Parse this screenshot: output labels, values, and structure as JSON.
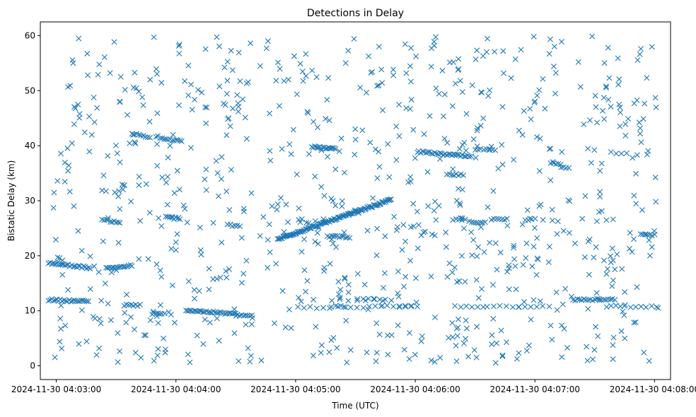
{
  "chart_data": {
    "type": "scatter",
    "title": "Detections in Delay",
    "xlabel": "Time (UTC)",
    "ylabel": "Bistatic Delay (km)",
    "marker": "x",
    "color": "#1f77b4",
    "grid": false,
    "xlim": [
      "2024-11-30 04:02:52",
      "2024-11-30 04:08:08"
    ],
    "ylim": [
      -2.5,
      62.5
    ],
    "x_ticks": [
      "2024-11-30 04:03:00",
      "2024-11-30 04:04:00",
      "2024-11-30 04:05:00",
      "2024-11-30 04:06:00",
      "2024-11-30 04:07:00",
      "2024-11-30 04:08:00"
    ],
    "y_ticks": [
      0,
      10,
      20,
      30,
      40,
      50,
      60
    ],
    "tracks": [
      {
        "start": "2024-11-30 04:02:56",
        "end": "2024-11-30 04:03:16",
        "y_start": 12.0,
        "y_end": 11.7,
        "count": 24
      },
      {
        "start": "2024-11-30 04:02:56",
        "end": "2024-11-30 04:03:17",
        "y_start": 18.7,
        "y_end": 17.8,
        "count": 26
      },
      {
        "start": "2024-11-30 04:03:23",
        "end": "2024-11-30 04:03:32",
        "y_start": 26.5,
        "y_end": 26.1,
        "count": 10
      },
      {
        "start": "2024-11-30 04:03:25",
        "end": "2024-11-30 04:03:38",
        "y_start": 17.7,
        "y_end": 18.2,
        "count": 16
      },
      {
        "start": "2024-11-30 04:03:34",
        "end": "2024-11-30 04:03:42",
        "y_start": 11.0,
        "y_end": 11.0,
        "count": 8
      },
      {
        "start": "2024-11-30 04:03:38",
        "end": "2024-11-30 04:03:47",
        "y_start": 42.2,
        "y_end": 41.4,
        "count": 9
      },
      {
        "start": "2024-11-30 04:03:48",
        "end": "2024-11-30 04:03:53",
        "y_start": 9.5,
        "y_end": 9.5,
        "count": 6
      },
      {
        "start": "2024-11-30 04:03:52",
        "end": "2024-11-30 04:04:03",
        "y_start": 41.3,
        "y_end": 40.8,
        "count": 12
      },
      {
        "start": "2024-11-30 04:03:55",
        "end": "2024-11-30 04:03:58",
        "y_start": 27.0,
        "y_end": 27.0,
        "count": 4
      },
      {
        "start": "2024-11-30 04:03:58",
        "end": "2024-11-30 04:04:02",
        "y_start": 26.8,
        "y_end": 26.8,
        "count": 5
      },
      {
        "start": "2024-11-30 04:04:05",
        "end": "2024-11-30 04:04:30",
        "y_start": 10.1,
        "y_end": 9.4,
        "count": 30
      },
      {
        "start": "2024-11-30 04:04:30",
        "end": "2024-11-30 04:04:38",
        "y_start": 9.2,
        "y_end": 9.1,
        "count": 9
      },
      {
        "start": "2024-11-30 04:04:26",
        "end": "2024-11-30 04:04:32",
        "y_start": 25.6,
        "y_end": 25.3,
        "count": 6
      },
      {
        "start": "2024-11-30 04:04:51",
        "end": "2024-11-30 04:05:48",
        "y_start": 23.0,
        "y_end": 30.2,
        "count": 110
      },
      {
        "start": "2024-11-30 04:05:01",
        "end": "2024-11-30 04:05:17",
        "y_start": 10.6,
        "y_end": 10.6,
        "count": 6
      },
      {
        "start": "2024-11-30 04:05:18",
        "end": "2024-11-30 04:05:37",
        "y_start": 10.6,
        "y_end": 10.6,
        "count": 7
      },
      {
        "start": "2024-11-30 04:05:40",
        "end": "2024-11-30 04:05:58",
        "y_start": 10.8,
        "y_end": 10.8,
        "count": 7
      },
      {
        "start": "2024-11-30 04:05:31",
        "end": "2024-11-30 04:05:45",
        "y_start": 12.2,
        "y_end": 12.2,
        "count": 6
      },
      {
        "start": "2024-11-30 04:05:52",
        "end": "2024-11-30 04:06:01",
        "y_start": 10.8,
        "y_end": 10.8,
        "count": 4
      },
      {
        "start": "2024-11-30 04:05:20",
        "end": "2024-11-30 04:05:25",
        "y_start": 10.8,
        "y_end": 10.8,
        "count": 3
      },
      {
        "start": "2024-11-30 04:05:18",
        "end": "2024-11-30 04:05:48",
        "y_start": 12.0,
        "y_end": 12.0,
        "count": 8
      },
      {
        "start": "2024-11-30 04:05:08",
        "end": "2024-11-30 04:05:20",
        "y_start": 39.8,
        "y_end": 39.4,
        "count": 18
      },
      {
        "start": "2024-11-30 04:05:16",
        "end": "2024-11-30 04:05:27",
        "y_start": 23.6,
        "y_end": 23.4,
        "count": 12
      },
      {
        "start": "2024-11-30 04:06:01",
        "end": "2024-11-30 04:06:28",
        "y_start": 38.9,
        "y_end": 38.0,
        "count": 32
      },
      {
        "start": "2024-11-30 04:06:16",
        "end": "2024-11-30 04:06:24",
        "y_start": 34.7,
        "y_end": 34.7,
        "count": 8
      },
      {
        "start": "2024-11-30 04:06:19",
        "end": "2024-11-30 04:06:25",
        "y_start": 26.5,
        "y_end": 26.5,
        "count": 5
      },
      {
        "start": "2024-11-30 04:06:27",
        "end": "2024-11-30 04:06:35",
        "y_start": 26.1,
        "y_end": 26.1,
        "count": 8
      },
      {
        "start": "2024-11-30 04:06:38",
        "end": "2024-11-30 04:06:46",
        "y_start": 26.6,
        "y_end": 26.6,
        "count": 7
      },
      {
        "start": "2024-11-30 04:06:30",
        "end": "2024-11-30 04:06:40",
        "y_start": 39.3,
        "y_end": 39.3,
        "count": 8
      },
      {
        "start": "2024-11-30 04:06:20",
        "end": "2024-11-30 04:06:34",
        "y_start": 10.8,
        "y_end": 10.8,
        "count": 6
      },
      {
        "start": "2024-11-30 04:06:36",
        "end": "2024-11-30 04:06:52",
        "y_start": 10.8,
        "y_end": 10.8,
        "count": 6
      },
      {
        "start": "2024-11-30 04:06:52",
        "end": "2024-11-30 04:07:04",
        "y_start": 10.8,
        "y_end": 10.8,
        "count": 5
      },
      {
        "start": "2024-11-30 04:06:55",
        "end": "2024-11-30 04:07:00",
        "y_start": 26.6,
        "y_end": 26.6,
        "count": 4
      },
      {
        "start": "2024-11-30 04:07:08",
        "end": "2024-11-30 04:07:13",
        "y_start": 36.7,
        "y_end": 36.7,
        "count": 5
      },
      {
        "start": "2024-11-30 04:07:13",
        "end": "2024-11-30 04:07:17",
        "y_start": 36.0,
        "y_end": 36.0,
        "count": 4
      },
      {
        "start": "2024-11-30 04:07:19",
        "end": "2024-11-30 04:07:40",
        "y_start": 12.0,
        "y_end": 12.0,
        "count": 20
      },
      {
        "start": "2024-11-30 04:07:36",
        "end": "2024-11-30 04:07:45",
        "y_start": 10.8,
        "y_end": 10.8,
        "count": 5
      },
      {
        "start": "2024-11-30 04:07:38",
        "end": "2024-11-30 04:07:46",
        "y_start": 38.7,
        "y_end": 38.7,
        "count": 4
      },
      {
        "start": "2024-11-30 04:07:53",
        "end": "2024-11-30 04:08:00",
        "y_start": 23.8,
        "y_end": 23.8,
        "count": 7
      },
      {
        "start": "2024-11-30 04:07:48",
        "end": "2024-11-30 04:08:01",
        "y_start": 10.7,
        "y_end": 10.7,
        "count": 6
      }
    ],
    "clutter": {
      "start": "2024-11-30 04:02:58",
      "end": "2024-11-30 04:08:02",
      "y_min": 0.5,
      "y_max": 60,
      "count": 820
    }
  }
}
